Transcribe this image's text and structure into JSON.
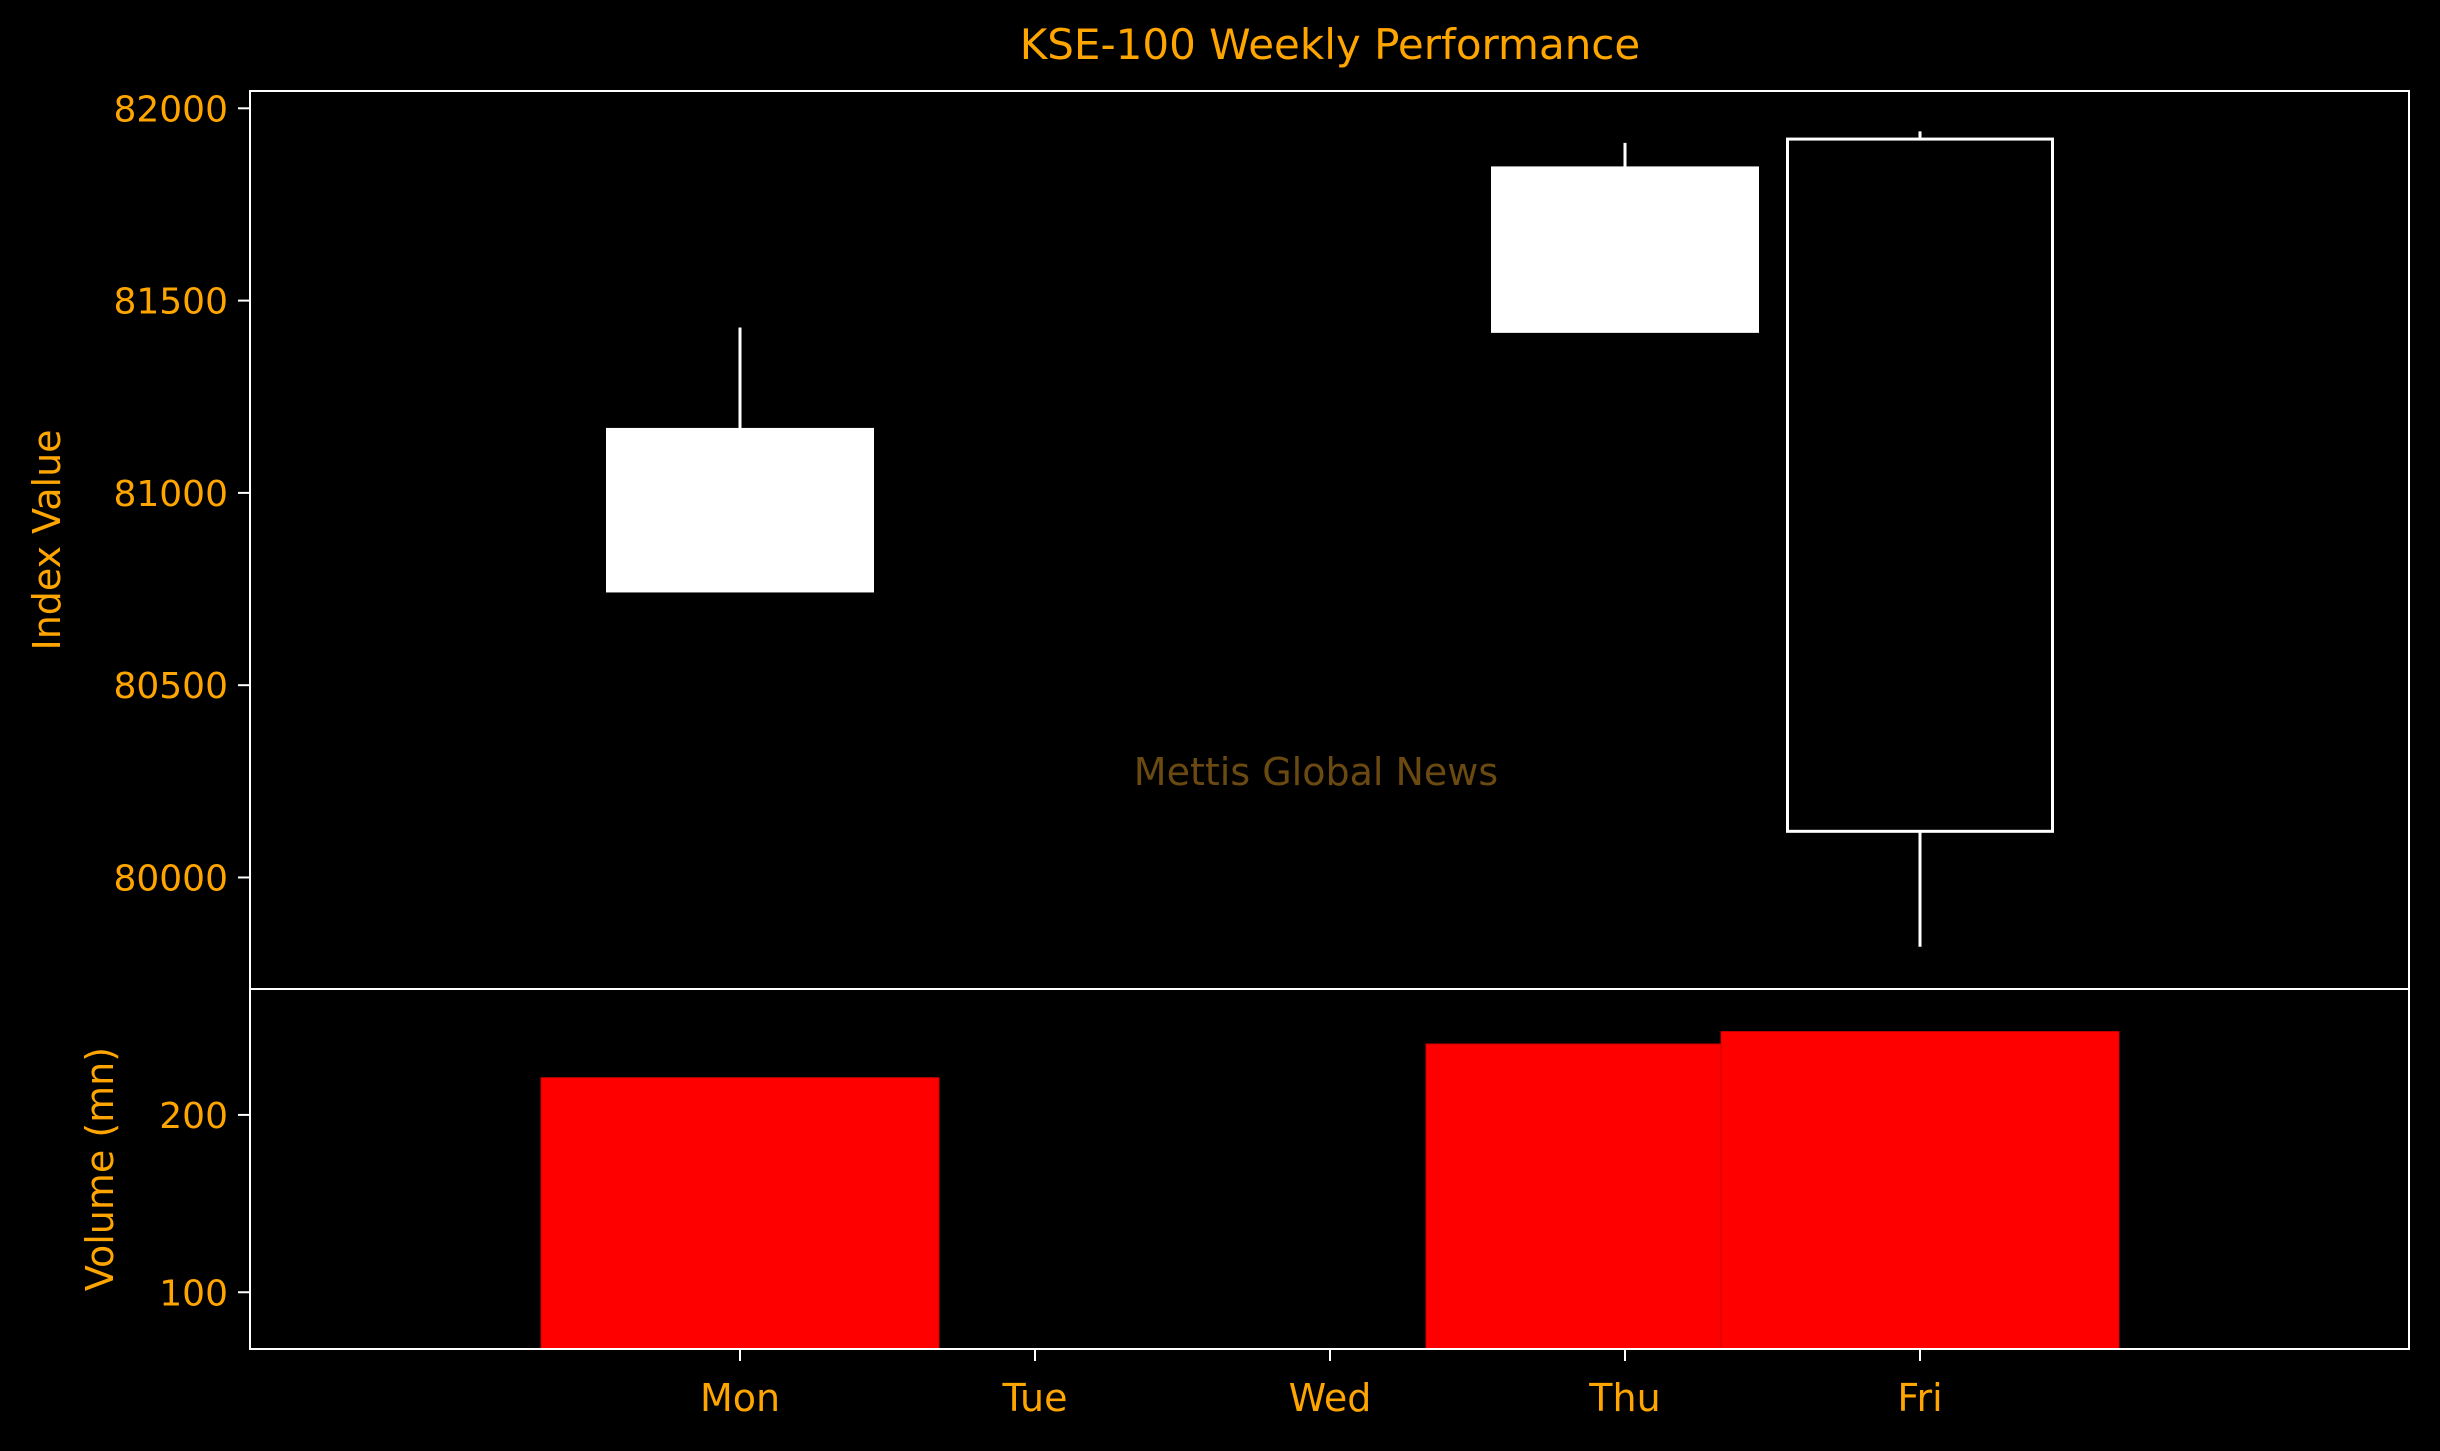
{
  "chart_data": {
    "type": "candlestick",
    "title": "KSE-100 Weekly Performance",
    "watermark": "Mettis Global News",
    "categories": [
      "Mon",
      "Tue",
      "Wed",
      "Thu",
      "Fri"
    ],
    "price_panel": {
      "ylabel": "Index Value",
      "ylim": [
        79710,
        82045
      ],
      "yticks": [
        80000,
        80500,
        81000,
        81500,
        82000
      ],
      "candles": [
        {
          "day": "Mon",
          "open": 80745,
          "close": 81165,
          "high": 81430,
          "low": 80745,
          "style": "filled"
        },
        {
          "day": "Tue",
          "open": null,
          "close": null,
          "high": null,
          "low": null,
          "style": "none"
        },
        {
          "day": "Wed",
          "open": null,
          "close": null,
          "high": null,
          "low": null,
          "style": "none"
        },
        {
          "day": "Thu",
          "open": 81420,
          "close": 81845,
          "high": 81910,
          "low": 81420,
          "style": "filled"
        },
        {
          "day": "Fri",
          "open": 80120,
          "close": 81920,
          "high": 81940,
          "low": 79820,
          "style": "hollow"
        }
      ]
    },
    "volume_panel": {
      "ylabel": "Volume (mn)",
      "ylim": [
        68,
        271
      ],
      "yticks": [
        100,
        200
      ],
      "bars": [
        {
          "day": "Mon",
          "value": 221
        },
        {
          "day": "Thu",
          "value": 240
        },
        {
          "day": "Fri",
          "value": 247
        }
      ]
    },
    "colors": {
      "background": "#000000",
      "text": "#FFA500",
      "frame": "#FFFFFF",
      "candle": "#FFFFFF",
      "volume": "#FF0000",
      "watermark": "#6B4A12"
    }
  }
}
